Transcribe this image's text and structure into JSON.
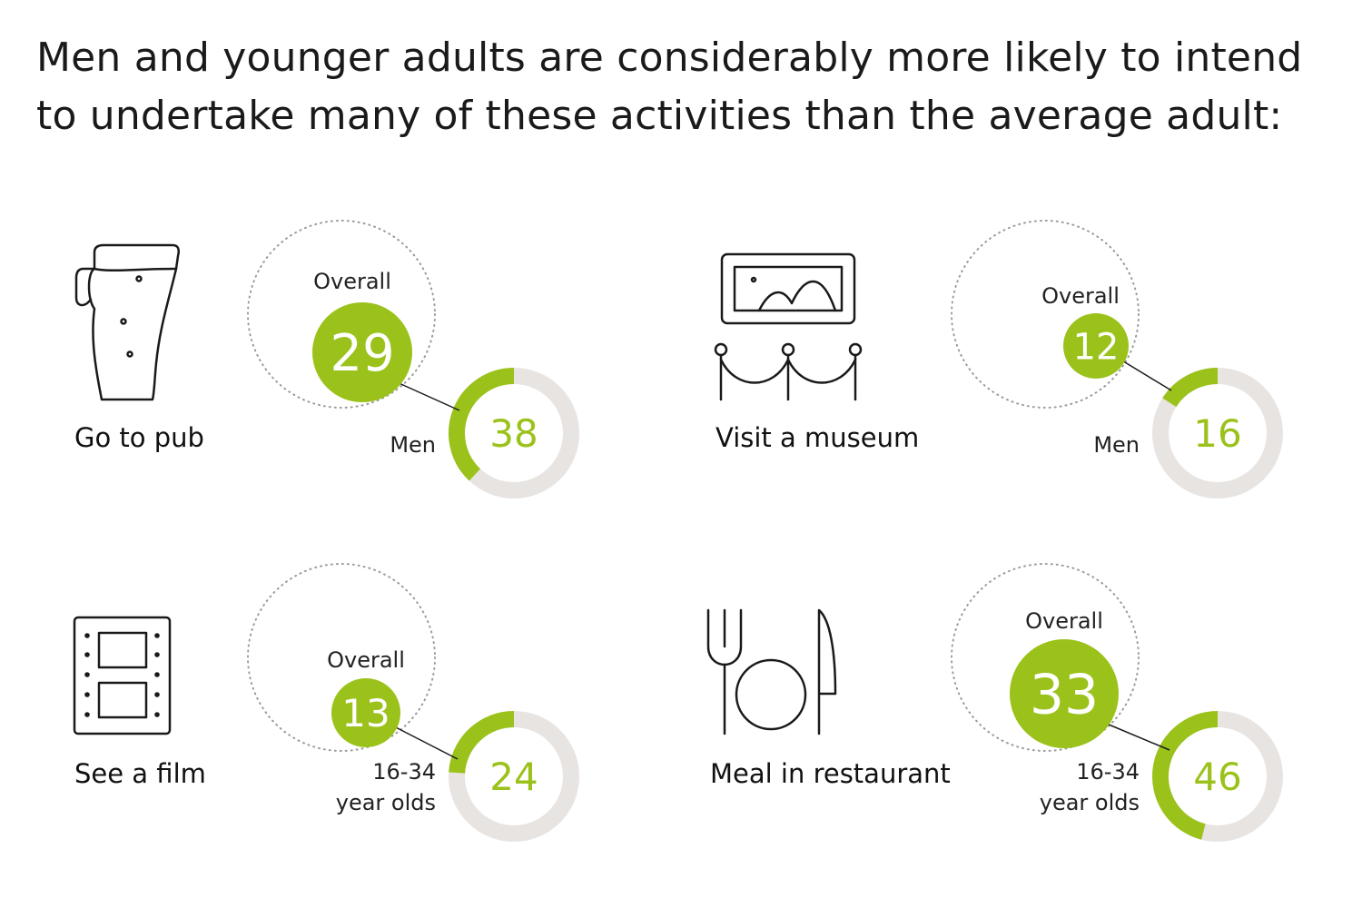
{
  "headline": {
    "line1": "Men and younger adults are considerably more likely to intend",
    "line2": "to undertake many of these activities than the average adult:"
  },
  "colors": {
    "accent": "#9bc21a",
    "track": "#e8e4e2",
    "dots": "#9a9a9a",
    "icon": "#1a1a1a"
  },
  "chart_data": [
    {
      "type": "donut",
      "activity": "Go to pub",
      "icon": "beer-glass-icon",
      "overall_label": "Overall",
      "overall_value": 29,
      "group_label_lines": [
        "Men"
      ],
      "group_value": 38
    },
    {
      "type": "donut",
      "activity": "Visit a museum",
      "icon": "museum-painting-icon",
      "overall_label": "Overall",
      "overall_value": 12,
      "group_label_lines": [
        "Men"
      ],
      "group_value": 16
    },
    {
      "type": "donut",
      "activity": "See a film",
      "icon": "film-strip-icon",
      "overall_label": "Overall",
      "overall_value": 13,
      "group_label_lines": [
        "16-34",
        "year olds"
      ],
      "group_value": 24
    },
    {
      "type": "donut",
      "activity": "Meal in restaurant",
      "icon": "cutlery-plate-icon",
      "overall_label": "Overall",
      "overall_value": 33,
      "group_label_lines": [
        "16-34",
        "year olds"
      ],
      "group_value": 46
    }
  ]
}
